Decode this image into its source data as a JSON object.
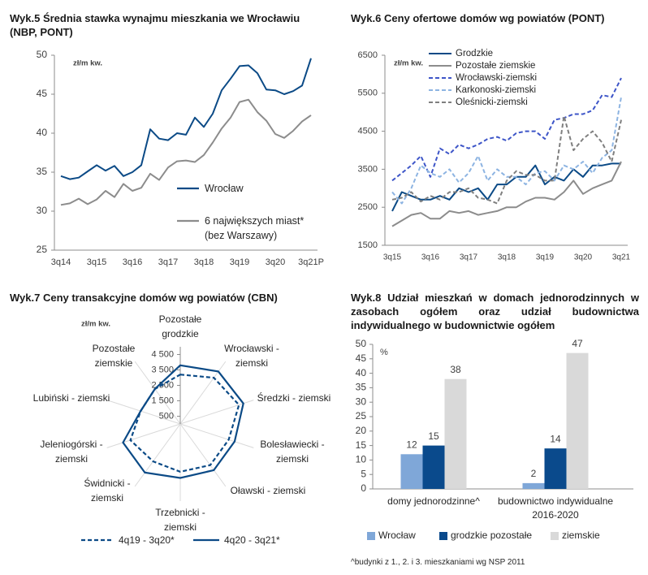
{
  "chart_data": [
    {
      "type": "line",
      "title": "Wyk.5 Średnia stawka wynajmu mieszkania we Wrocławiu (NBP, PONT)",
      "unit": "zł/m kw.",
      "categories": [
        "3q14",
        null,
        null,
        null,
        "3q15",
        null,
        null,
        null,
        "3q16",
        null,
        null,
        null,
        "3q17",
        null,
        null,
        null,
        "3q18",
        null,
        null,
        null,
        "3q19",
        null,
        null,
        null,
        "3q20",
        null,
        null,
        null,
        "3q21P"
      ],
      "ylim": [
        25,
        50
      ],
      "yticks": [
        25,
        30,
        35,
        40,
        45,
        50
      ],
      "grid": false,
      "legend": "center right",
      "series": [
        {
          "name": "Wrocław",
          "color": "#0b4a86",
          "values": [
            34.5,
            34.1,
            34.3,
            35.1,
            35.9,
            35.2,
            35.8,
            34.5,
            35.0,
            35.9,
            40.5,
            39.3,
            39.1,
            40.0,
            39.8,
            42.0,
            40.8,
            42.5,
            45.5,
            47.0,
            48.6,
            48.7,
            47.7,
            45.6,
            45.5,
            45.0,
            45.4,
            46.1,
            49.6
          ]
        },
        {
          "name": "6 największych miast* (bez Warszawy)",
          "color": "#8c8c8c",
          "values": [
            30.8,
            31.0,
            31.6,
            30.9,
            31.5,
            32.6,
            31.8,
            33.5,
            32.6,
            33.0,
            34.8,
            34.0,
            35.6,
            36.4,
            36.5,
            36.3,
            37.2,
            38.8,
            40.6,
            42.0,
            44.0,
            44.3,
            42.7,
            41.6,
            39.9,
            39.4,
            40.3,
            41.5,
            42.3
          ]
        }
      ]
    },
    {
      "type": "line",
      "title": "Wyk.6 Ceny ofertowe domów wg powiatów (PONT)",
      "unit": "zł/m kw.",
      "categories": [
        "3q15",
        null,
        null,
        null,
        "3q16",
        null,
        null,
        null,
        "3q17",
        null,
        null,
        null,
        "3q18",
        null,
        null,
        null,
        "3q19",
        null,
        null,
        null,
        "3q20",
        null,
        null,
        null,
        "3q21"
      ],
      "ylim": [
        1500,
        6500
      ],
      "yticks": [
        1500,
        2500,
        3500,
        4500,
        5500,
        6500
      ],
      "grid": false,
      "legend": "upper left",
      "series": [
        {
          "name": "Grodzkie",
          "color": "#0b4a86",
          "dash": false,
          "values": [
            2400,
            2900,
            2800,
            2700,
            2700,
            2800,
            2700,
            3000,
            2900,
            3000,
            2700,
            3100,
            3100,
            3300,
            3300,
            3600,
            3100,
            3300,
            3200,
            3500,
            3300,
            3600,
            3600,
            3650,
            3650
          ]
        },
        {
          "name": "Pozostałe ziemskie",
          "color": "#8c8c8c",
          "dash": false,
          "values": [
            2000,
            2150,
            2300,
            2350,
            2200,
            2200,
            2400,
            2350,
            2400,
            2300,
            2350,
            2400,
            2500,
            2500,
            2650,
            2750,
            2750,
            2700,
            2900,
            3200,
            2850,
            3000,
            3100,
            3200,
            3700
          ]
        },
        {
          "name": "Wrocławski-ziemski",
          "color": "#3d55c8",
          "dash": true,
          "values": [
            3200,
            3400,
            3600,
            3850,
            3300,
            4050,
            3900,
            4150,
            4050,
            4150,
            4300,
            4350,
            4250,
            4450,
            4500,
            4500,
            4300,
            4800,
            4850,
            4950,
            4950,
            5050,
            5450,
            5400,
            5900
          ]
        },
        {
          "name": "Karkonoski-ziemski",
          "color": "#8db4e2",
          "dash": true,
          "values": [
            2900,
            2600,
            3000,
            3600,
            3400,
            3300,
            3500,
            3150,
            3400,
            3850,
            3200,
            3500,
            3300,
            3300,
            3100,
            3400,
            3450,
            3200,
            3600,
            3500,
            3700,
            3400,
            3800,
            4000,
            5400
          ]
        },
        {
          "name": "Oleśnicki-ziemski",
          "color": "#7f7f7f",
          "dash": true,
          "values": [
            2700,
            2750,
            2900,
            2650,
            2800,
            2700,
            2900,
            2900,
            3000,
            2750,
            2700,
            2600,
            3200,
            3450,
            3350,
            3350,
            3200,
            3200,
            4900,
            4000,
            4300,
            4500,
            4200,
            3700,
            4800
          ]
        }
      ]
    },
    {
      "type": "radar",
      "title": "Wyk.7 Ceny transakcyjne domów wg powiatów (CBN)",
      "unit": "zł/m kw.",
      "categories": [
        "Pozostałe grodzkie",
        "Wrocławski - ziemski",
        "Średzki - ziemski",
        "Bolesławiecki - ziemski",
        "Oławski - ziemski",
        "Trzebnicki - ziemski",
        "Świdnicki - ziemski",
        "Jeleniogórski - ziemski",
        "Lubiński - ziemski",
        "Pozostałe ziemskie"
      ],
      "rlim": [
        0,
        5000
      ],
      "rticks": [
        500,
        {
          "value": 1500,
          "label": "1 500"
        },
        {
          "value": 2500,
          "label": "2 500"
        },
        {
          "value": 3500,
          "label": "3 500"
        },
        {
          "value": 4500,
          "label": "4 500"
        }
      ],
      "legend": "bottom",
      "series": [
        {
          "name": "4q19 - 3q20*",
          "color": "#0b4a86",
          "dash": true,
          "values": [
            3200,
            3700,
            4000,
            3300,
            3300,
            3100,
            3000,
            3400,
            2700,
            2800
          ]
        },
        {
          "name": "4q20 - 3q21*",
          "color": "#0b4a86",
          "dash": false,
          "values": [
            3800,
            4200,
            4300,
            3700,
            3700,
            3500,
            3900,
            3900,
            2700,
            2800
          ]
        }
      ]
    },
    {
      "type": "bar",
      "title": "Wyk.8 Udział mieszkań w domach jednorodzinnych w zasobach ogółem oraz udział budownictwa indywidualnego w budownictwie ogółem",
      "unit": "%",
      "categories": [
        "domy jednorodzinne^",
        "budownictwo indywidualne 2016-2020"
      ],
      "ylim": [
        0,
        50
      ],
      "yticks": [
        0,
        5,
        10,
        15,
        20,
        25,
        30,
        35,
        40,
        45,
        50
      ],
      "grid": false,
      "legend": "bottom",
      "series": [
        {
          "name": "Wrocław",
          "color": "#7fa7d8",
          "values": [
            12,
            2
          ]
        },
        {
          "name": "grodzkie pozostałe",
          "color": "#0a4a8c",
          "values": [
            15,
            14
          ]
        },
        {
          "name": "ziemskie",
          "color": "#d9d9d9",
          "values": [
            38,
            47
          ]
        }
      ],
      "footnote": "^budynki z 1., 2. i 3. mieszkaniami wg NSP 2011"
    }
  ]
}
